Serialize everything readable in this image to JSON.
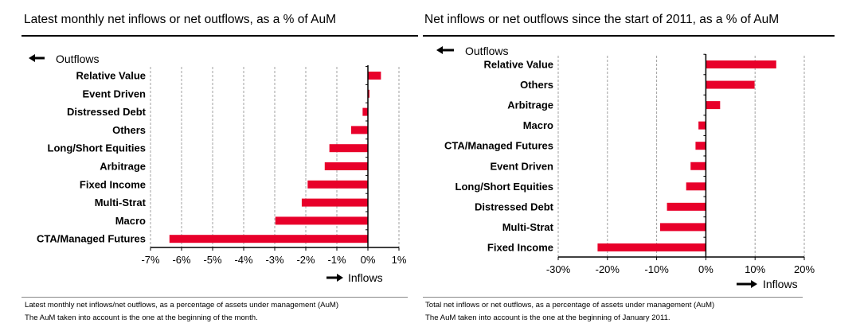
{
  "colors": {
    "bar": "#e8002a",
    "grid": "#a0a0a0",
    "axis": "#000000"
  },
  "chart_data": [
    {
      "type": "bar",
      "orientation": "horizontal",
      "title": "Latest monthly net inflows or net outflows, as a % of AuM",
      "categories": [
        "Relative Value",
        "Event Driven",
        "Distressed Debt",
        "Others",
        "Long/Short Equities",
        "Arbitrage",
        "Fixed Income",
        "Multi-Strat",
        "Macro",
        "CTA/Managed Futures"
      ],
      "values": [
        0.42,
        0.05,
        -0.17,
        -0.54,
        -1.24,
        -1.39,
        -1.94,
        -2.13,
        -2.98,
        -6.39
      ],
      "unit": "%",
      "xlim": [
        -7,
        1
      ],
      "xticks": [
        -7,
        -6,
        -5,
        -4,
        -3,
        -2,
        -1,
        0,
        1
      ],
      "xtick_labels": [
        "-7%",
        "-6%",
        "-5%",
        "-4%",
        "-3%",
        "-2%",
        "-1%",
        "0%",
        "1%"
      ],
      "grid": true,
      "outflows_label": "Outflows",
      "inflows_label": "Inflows",
      "footnote": [
        "Latest monthly net inflows/net outflows, as a percentage of assets under management (AuM)",
        "The AuM taken into account is the one at the beginning of the month."
      ]
    },
    {
      "type": "bar",
      "orientation": "horizontal",
      "title": "Net inflows or net outflows since the start of 2011, as a % of AuM",
      "categories": [
        "Relative Value",
        "Others",
        "Arbitrage",
        "Macro",
        "CTA/Managed Futures",
        "Event Driven",
        "Long/Short Equities",
        "Distressed Debt",
        "Multi-Strat",
        "Fixed Income"
      ],
      "values": [
        14.3,
        9.9,
        2.9,
        -1.5,
        -2.1,
        -3.1,
        -4.0,
        -7.9,
        -9.3,
        -22.0
      ],
      "unit": "%",
      "xlim": [
        -30,
        20
      ],
      "xticks": [
        -30,
        -20,
        -10,
        0,
        10,
        20
      ],
      "xtick_labels": [
        "-30%",
        "-20%",
        "-10%",
        "0%",
        "10%",
        "20%"
      ],
      "grid": true,
      "outflows_label": "Outflows",
      "inflows_label": "Inflows",
      "footnote": [
        "Total net inflows or net outflows, as a percentage of assets under management (AuM)",
        "The AuM taken into account is the one at the beginning of January 2011."
      ]
    }
  ]
}
